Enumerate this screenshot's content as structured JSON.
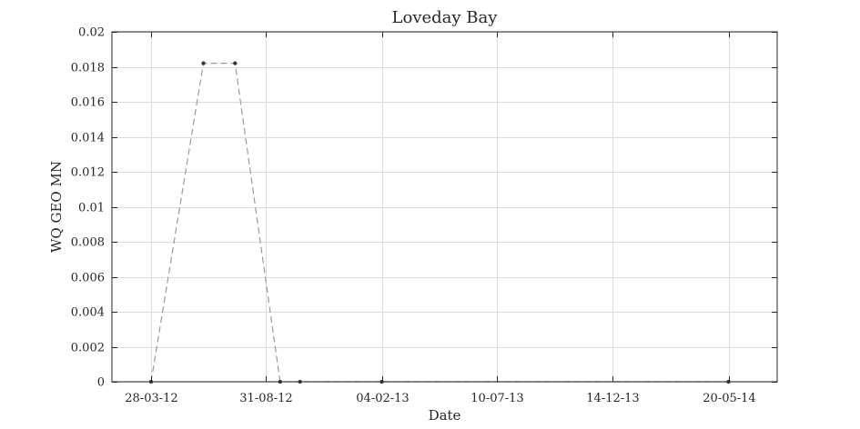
{
  "chart_data": {
    "type": "line",
    "title": "Loveday Bay",
    "xlabel": "Date",
    "ylabel": "WQ GEO MN",
    "x_tick_labels": [
      "28-03-12",
      "31-08-12",
      "04-02-13",
      "10-07-13",
      "14-12-13",
      "20-05-14"
    ],
    "y_tick_labels": [
      "0",
      "0.002",
      "0.004",
      "0.006",
      "0.008",
      "0.01",
      "0.012",
      "0.014",
      "0.016",
      "0.018",
      "0.02"
    ],
    "xlim": [
      "2012-02-04",
      "2014-07-25"
    ],
    "ylim": [
      0,
      0.02
    ],
    "grid": true,
    "series": [
      {
        "x": [
          "2012-03-28",
          "2012-06-07",
          "2012-07-20",
          "2012-09-19",
          "2012-10-16",
          "2013-02-04",
          "2014-05-20"
        ],
        "y": [
          0,
          0.0182,
          0.0182,
          0,
          0,
          0,
          0
        ],
        "color": "#9a9a9a",
        "line_style": "dashed",
        "marker": "dot",
        "marker_color": "#333333"
      }
    ]
  }
}
